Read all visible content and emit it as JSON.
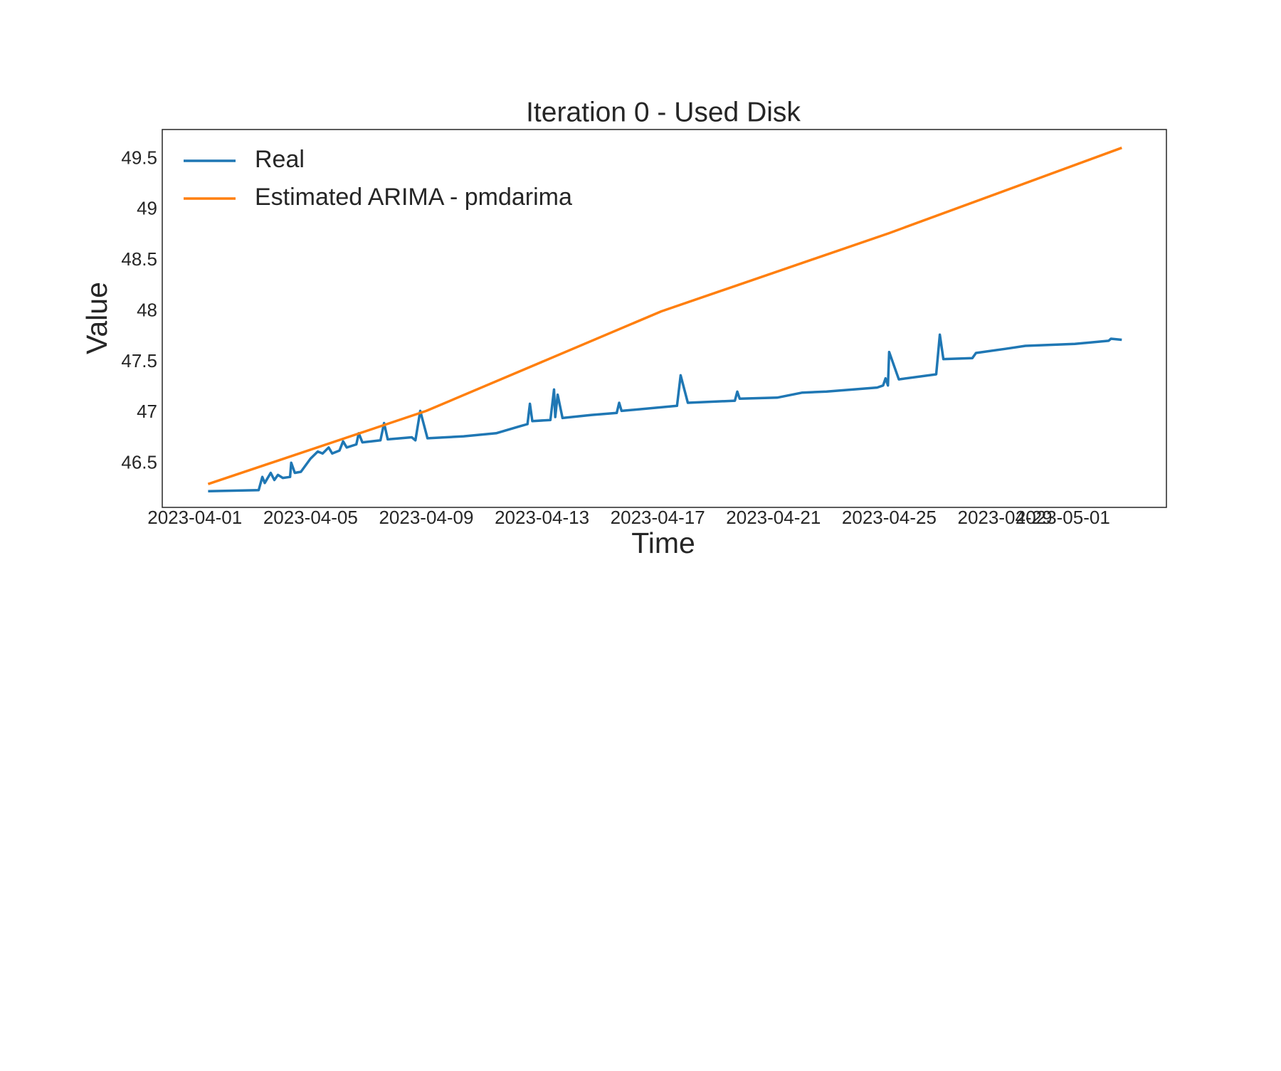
{
  "chart_data": {
    "type": "line",
    "title": "Iteration 0 - Used Disk",
    "x_label": "Time",
    "y_label": "Value",
    "xlim": [
      "2023-03-30T21:00",
      "2023-05-04T14:00"
    ],
    "xticks": [
      "2023-04-01",
      "2023-04-05",
      "2023-04-09",
      "2023-04-13",
      "2023-04-17",
      "2023-04-21",
      "2023-04-25",
      "2023-04-29",
      "2023-05-01"
    ],
    "ylim": [
      46.07,
      49.79
    ],
    "yticks": [
      46.5,
      47.0,
      47.5,
      48.0,
      48.5,
      49.0,
      49.5
    ],
    "grid": false,
    "legend": "upper left",
    "series": [
      {
        "name": "Real",
        "color": "#1f77b4",
        "x": [
          "2023-04-01T11:00",
          "2023-04-03T05:00",
          "2023-04-03T08:00",
          "2023-04-03T10:00",
          "2023-04-03T15:00",
          "2023-04-03T18:00",
          "2023-04-03T21:00",
          "2023-04-04T01:00",
          "2023-04-04T07:00",
          "2023-04-04T08:00",
          "2023-04-04T11:00",
          "2023-04-04T16:00",
          "2023-04-05T00:00",
          "2023-04-05T06:00",
          "2023-04-05T10:00",
          "2023-04-05T15:00",
          "2023-04-05T18:00",
          "2023-04-06T00:00",
          "2023-04-06T03:00",
          "2023-04-06T06:00",
          "2023-04-06T14:00",
          "2023-04-06T16:00",
          "2023-04-06T19:00",
          "2023-04-07T10:00",
          "2023-04-07T13:00",
          "2023-04-07T16:00",
          "2023-04-08T12:00",
          "2023-04-08T15:00",
          "2023-04-08T19:00",
          "2023-04-09T01:00",
          "2023-04-10T07:00",
          "2023-04-11T10:00",
          "2023-04-12T06:00",
          "2023-04-12T12:00",
          "2023-04-12T14:00",
          "2023-04-12T16:00",
          "2023-04-13T07:00",
          "2023-04-13T10:00",
          "2023-04-13T11:00",
          "2023-04-13T13:00",
          "2023-04-13T17:00",
          "2023-04-14T17:00",
          "2023-04-15T14:00",
          "2023-04-15T16:00",
          "2023-04-15T18:00",
          "2023-04-17T16:00",
          "2023-04-17T19:00",
          "2023-04-18T01:00",
          "2023-04-19T16:00",
          "2023-04-19T18:00",
          "2023-04-19T20:00",
          "2023-04-21T03:00",
          "2023-04-22T00:00",
          "2023-04-22T20:00",
          "2023-04-24T14:00",
          "2023-04-24T19:00",
          "2023-04-24T21:00",
          "2023-04-24T23:00",
          "2023-04-25T00:00",
          "2023-04-25T08:00",
          "2023-04-26T15:00",
          "2023-04-26T18:00",
          "2023-04-26T21:00",
          "2023-04-27T21:00",
          "2023-04-28T00:00",
          "2023-04-29T00:00",
          "2023-04-29T17:00",
          "2023-05-01T10:00",
          "2023-05-02T14:00",
          "2023-05-02T16:00",
          "2023-05-03T01:00"
        ],
        "values": [
          46.23,
          46.24,
          46.37,
          46.31,
          46.41,
          46.34,
          46.39,
          46.36,
          46.37,
          46.51,
          46.41,
          46.42,
          46.55,
          46.62,
          46.6,
          46.66,
          46.6,
          46.63,
          46.72,
          46.66,
          46.69,
          46.8,
          46.71,
          46.73,
          46.9,
          46.74,
          46.76,
          46.73,
          47.02,
          46.75,
          46.77,
          46.8,
          46.87,
          46.89,
          47.09,
          46.92,
          46.93,
          47.23,
          46.96,
          47.18,
          46.95,
          46.98,
          47.0,
          47.1,
          47.02,
          47.07,
          47.37,
          47.1,
          47.12,
          47.21,
          47.14,
          47.15,
          47.2,
          47.21,
          47.25,
          47.27,
          47.34,
          47.27,
          47.6,
          47.33,
          47.38,
          47.77,
          47.53,
          47.54,
          47.59,
          47.63,
          47.66,
          47.68,
          47.71,
          47.73,
          47.72
        ]
      },
      {
        "name": "Estimated ARIMA - pmdarima",
        "color": "#ff7f0e",
        "x": [
          "2023-04-01T11:00",
          "2023-04-09T00:00",
          "2023-04-17T03:00",
          "2023-04-25T00:00",
          "2023-05-03T01:00"
        ],
        "values": [
          46.3,
          47.02,
          48.0,
          48.77,
          49.61
        ]
      }
    ]
  }
}
